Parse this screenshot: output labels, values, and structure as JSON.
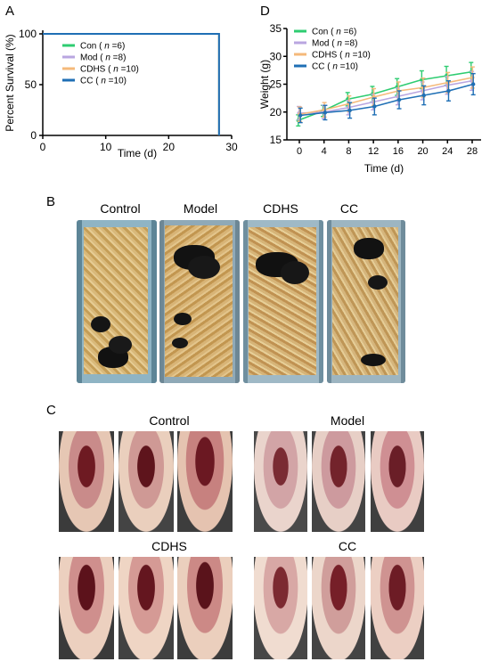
{
  "panels": {
    "a": "A",
    "b": "B",
    "c": "C",
    "d": "D"
  },
  "chart_data": [
    {
      "type": "line",
      "panel": "A",
      "title": "",
      "xlabel": "Time (d)",
      "ylabel": "Percent Survival (%)",
      "xlim": [
        0,
        30
      ],
      "ylim": [
        0,
        100
      ],
      "xticks": [
        "0",
        "10",
        "20",
        "30"
      ],
      "yticks": [
        "0",
        "50",
        "100"
      ],
      "legend_position": "top-left",
      "series": [
        {
          "name": "Con",
          "n": "6",
          "color": "#2ecc71",
          "x": [
            0,
            28,
            28
          ],
          "y": [
            100,
            100,
            0
          ]
        },
        {
          "name": "Mod",
          "n": "8",
          "color": "#b9a6e0",
          "x": [
            0,
            28,
            28
          ],
          "y": [
            100,
            100,
            0
          ]
        },
        {
          "name": "CDHS",
          "n": "10",
          "color": "#f5b97a",
          "x": [
            0,
            28,
            28
          ],
          "y": [
            100,
            100,
            0
          ]
        },
        {
          "name": "CC",
          "n": "10",
          "color": "#1f6fb5",
          "x": [
            0,
            28,
            28
          ],
          "y": [
            100,
            100,
            0
          ]
        }
      ],
      "legend": [
        {
          "name": "Con",
          "paren_open": "( ",
          "n_label": "n",
          "n_value": "=6",
          "paren_close": ")"
        },
        {
          "name": "Mod",
          "paren_open": "( ",
          "n_label": "n",
          "n_value": "=8",
          "paren_close": ")"
        },
        {
          "name": "CDHS",
          "paren_open": "( ",
          "n_label": "n",
          "n_value": "=10",
          "paren_close": ")"
        },
        {
          "name": "CC",
          "paren_open": "( ",
          "n_label": "n",
          "n_value": "=10",
          "paren_close": ")"
        }
      ]
    },
    {
      "type": "line",
      "panel": "D",
      "title": "",
      "xlabel": "Time (d)",
      "ylabel": "Weight (g)",
      "categories": [
        "0",
        "4",
        "8",
        "12",
        "16",
        "20",
        "24",
        "28"
      ],
      "ylim": [
        15,
        35
      ],
      "yticks": [
        "15",
        "20",
        "25",
        "30",
        "35"
      ],
      "legend_position": "top-left",
      "series": [
        {
          "name": "Con",
          "n": "6",
          "color": "#2ecc71",
          "values": [
            18.5,
            20.2,
            22.3,
            23.2,
            24.5,
            25.8,
            26.5,
            27.2
          ],
          "errors": [
            1.0,
            1.0,
            1.2,
            1.4,
            1.5,
            1.6,
            1.7,
            1.7
          ]
        },
        {
          "name": "Mod",
          "n": "8",
          "color": "#b9a6e0",
          "values": [
            19.8,
            20.0,
            20.8,
            21.8,
            22.8,
            23.8,
            24.8,
            25.6
          ],
          "errors": [
            1.2,
            1.2,
            1.3,
            1.4,
            1.5,
            1.6,
            1.6,
            1.7
          ]
        },
        {
          "name": "CDHS",
          "n": "10",
          "color": "#f5b97a",
          "values": [
            19.6,
            20.4,
            21.5,
            22.7,
            23.8,
            24.4,
            25.3,
            26.2
          ],
          "errors": [
            1.3,
            1.3,
            1.4,
            1.5,
            1.6,
            1.7,
            1.8,
            1.9
          ]
        },
        {
          "name": "CC",
          "n": "10",
          "color": "#1f6fb5",
          "values": [
            19.4,
            19.9,
            20.3,
            21.0,
            22.2,
            23.0,
            23.8,
            25.0
          ],
          "errors": [
            1.3,
            1.3,
            1.4,
            1.5,
            1.6,
            1.7,
            1.8,
            1.9
          ]
        }
      ],
      "legend": [
        {
          "name": "Con",
          "paren_open": "( ",
          "n_label": "n",
          "n_value": "=6",
          "paren_close": ")"
        },
        {
          "name": "Mod",
          "paren_open": "( ",
          "n_label": "n",
          "n_value": "=8",
          "paren_close": ")"
        },
        {
          "name": "CDHS",
          "paren_open": "( ",
          "n_label": "n",
          "n_value": "=10",
          "paren_close": ")"
        },
        {
          "name": "CC",
          "paren_open": "( ",
          "n_label": "n",
          "n_value": "=10",
          "paren_close": ")"
        }
      ]
    }
  ],
  "panel_b": {
    "labels": [
      "Control",
      "Model",
      "CDHS",
      "CC"
    ]
  },
  "panel_c": {
    "labels": [
      "Control",
      "Model",
      "CDHS",
      "CC"
    ]
  }
}
